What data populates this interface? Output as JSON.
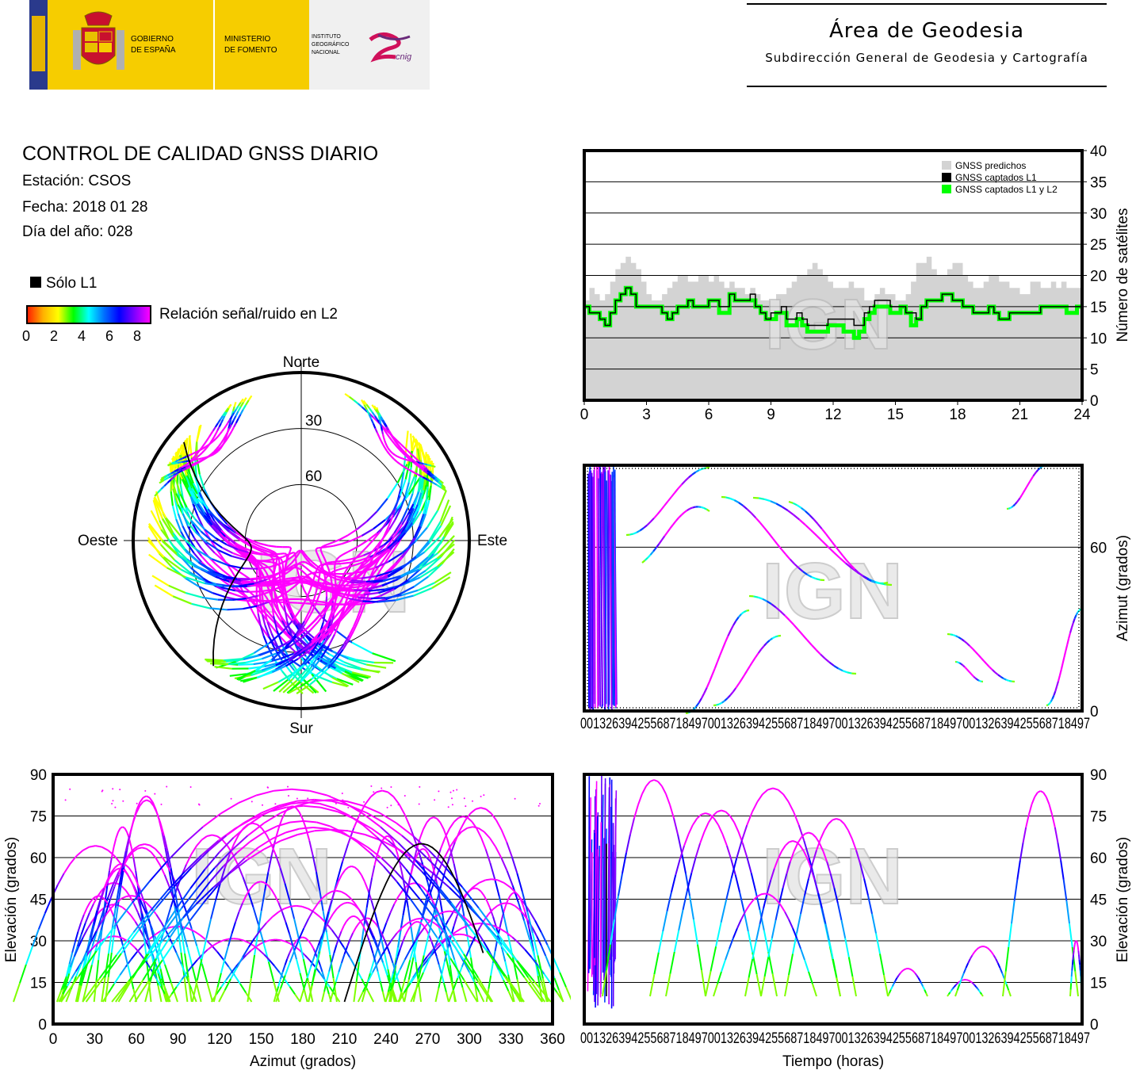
{
  "header": {
    "left_logo": {
      "gov_line1": "GOBIERNO",
      "gov_line2": "DE ESPAÑA",
      "min_line1": "MINISTERIO",
      "min_line2": "DE FOMENTO",
      "ign_line1": "INSTITUTO",
      "ign_line2": "GEOGRÁFICO",
      "ign_line3": "NACIONAL",
      "cnig": "cnig"
    },
    "title": "Área de Geodesia",
    "subtitle": "Subdirección General de Geodesia y Cartografía"
  },
  "info": {
    "title": "CONTROL DE CALIDAD GNSS DIARIO",
    "station": "Estación: CSOS",
    "date": "Fecha: 2018 01 28",
    "doy": "Día del año: 028"
  },
  "legend": {
    "l1_only": "Sólo L1",
    "snr_label": "Relación señal/ruido en L2",
    "snr_ticks": [
      "0",
      "2",
      "4",
      "6",
      "8"
    ]
  },
  "watermark": "IGN",
  "colors": {
    "predicted": "#d3d3d3",
    "l1": "#000000",
    "l1l2": "#00ff00",
    "snr_high": "#ff00ff",
    "snr_gradient": [
      "#ff0000",
      "#ffff00",
      "#00ff00",
      "#00ffff",
      "#0000ff",
      "#ff00ff"
    ]
  },
  "chart_data": [
    {
      "id": "skyplot",
      "type": "scatter",
      "directions": {
        "n": "Norte",
        "s": "Sur",
        "e": "Este",
        "w": "Oeste"
      },
      "rings": [
        "30",
        "60"
      ]
    },
    {
      "id": "sat_count",
      "type": "line",
      "x_ticks": [
        "0",
        "3",
        "6",
        "9",
        "12",
        "15",
        "18",
        "21",
        "24"
      ],
      "y_ticks": [
        "0",
        "5",
        "10",
        "15",
        "20",
        "25",
        "30",
        "35",
        "40"
      ],
      "ylabel": "Número de satélites",
      "xlim": [
        0,
        24
      ],
      "ylim": [
        0,
        40
      ],
      "legend": [
        "GNSS predichos",
        "GNSS captados L1",
        "GNSS captados L1 y L2"
      ],
      "predicted": [
        16,
        18,
        17,
        16,
        17,
        19,
        21,
        22,
        23,
        22,
        21,
        19,
        17,
        16,
        16,
        17,
        18,
        19,
        20,
        20,
        19,
        19,
        20,
        20,
        19,
        20,
        19,
        18,
        19,
        18,
        18,
        17,
        18,
        17,
        16,
        16,
        16,
        17,
        17,
        18,
        19,
        20,
        20,
        21,
        22,
        21,
        20,
        19,
        18,
        18,
        18,
        19,
        18,
        18,
        16,
        16,
        17,
        18,
        17,
        17,
        16,
        16,
        17,
        19,
        22,
        22,
        23,
        21,
        20,
        20,
        21,
        22,
        22,
        20,
        19,
        18,
        18,
        19,
        20,
        20,
        19,
        19,
        18,
        18,
        17,
        17,
        19,
        19,
        18,
        18,
        19,
        18,
        19,
        18,
        18,
        18
      ],
      "l1": [
        15,
        14,
        14,
        13,
        12,
        14,
        16,
        17,
        18,
        17,
        15,
        15,
        15,
        15,
        15,
        14,
        13,
        14,
        15,
        15,
        16,
        15,
        15,
        15,
        16,
        16,
        15,
        15,
        17,
        16,
        16,
        16,
        17,
        15,
        14,
        13,
        14,
        14,
        15,
        13,
        13,
        14,
        13,
        12,
        12,
        12,
        12,
        13,
        13,
        13,
        13,
        13,
        12,
        12,
        14,
        15,
        16,
        16,
        16,
        15,
        15,
        15,
        14,
        14,
        13,
        15,
        16,
        16,
        16,
        17,
        17,
        16,
        16,
        15,
        15,
        14,
        14,
        14,
        15,
        14,
        13,
        13,
        14,
        14,
        14,
        14,
        14,
        14,
        15,
        15,
        15,
        15,
        15,
        15,
        15,
        15
      ],
      "l1l2": [
        15,
        14,
        14,
        13,
        12,
        14,
        16,
        17,
        18,
        17,
        15,
        15,
        15,
        15,
        15,
        14,
        13,
        14,
        15,
        15,
        16,
        15,
        15,
        15,
        16,
        16,
        14,
        14,
        17,
        16,
        16,
        16,
        16,
        15,
        14,
        13,
        13,
        14,
        14,
        12,
        12,
        13,
        12,
        11,
        11,
        11,
        11,
        12,
        12,
        12,
        11,
        11,
        10,
        11,
        13,
        14,
        15,
        15,
        15,
        14,
        14,
        15,
        14,
        12,
        13,
        15,
        16,
        16,
        16,
        17,
        17,
        16,
        16,
        15,
        15,
        14,
        14,
        14,
        15,
        14,
        13,
        13,
        14,
        14,
        14,
        14,
        14,
        14,
        15,
        15,
        15,
        15,
        15,
        14,
        14,
        15
      ]
    },
    {
      "id": "azimuth_time",
      "type": "scatter",
      "ylabel": "Azimut (grados)",
      "y_ticks": [
        "0",
        "60"
      ],
      "ylim": [
        0,
        90
      ]
    },
    {
      "id": "elev_azimuth",
      "type": "scatter",
      "xlabel": "Azimut (grados)",
      "ylabel": "Elevación (grados)",
      "x_ticks": [
        "0",
        "30",
        "60",
        "90",
        "120",
        "150",
        "180",
        "210",
        "240",
        "270",
        "300",
        "330",
        "360"
      ],
      "y_ticks": [
        "0",
        "15",
        "30",
        "45",
        "60",
        "75",
        "90"
      ],
      "xlim": [
        0,
        360
      ],
      "ylim": [
        0,
        90
      ]
    },
    {
      "id": "elev_time",
      "type": "scatter",
      "xlabel": "Tiempo (horas)",
      "ylabel": "Elevación (grados)",
      "y_ticks": [
        "0",
        "15",
        "30",
        "45",
        "60",
        "75",
        "90"
      ],
      "ylim": [
        0,
        90
      ]
    }
  ]
}
